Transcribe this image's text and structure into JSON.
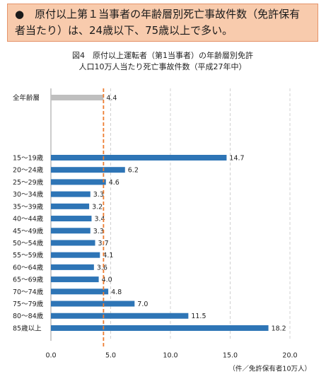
{
  "header": {
    "text": "●　原付以上第１当事者の年齢層別死亡事故件数（免許保有者当たり）は、24歳以下、75歳以上で多い。"
  },
  "chart_data": {
    "type": "hbar",
    "title": "図4　原付以上運転者（第1当事者）の年齢層別免許",
    "subtitle": "人口10万人当たり死亡事故件数（平成27年中）",
    "x_unit_label": "（件／免許保有者10万人）",
    "categories": [
      "全年齢層",
      "15～19歳",
      "20～24歳",
      "25～29歳",
      "30～34歳",
      "35～39歳",
      "40～44歳",
      "45～49歳",
      "50～54歳",
      "55～59歳",
      "60～64歳",
      "65～69歳",
      "70～74歳",
      "75～79歳",
      "80～84歳",
      "85歳以上"
    ],
    "values": [
      4.4,
      14.7,
      6.2,
      4.6,
      3.3,
      3.2,
      3.4,
      3.3,
      3.7,
      4.1,
      3.6,
      4.0,
      4.8,
      7.0,
      11.5,
      18.2
    ],
    "value_labels": [
      "4.4",
      "14.7",
      "6.2",
      "4.6",
      "3.3",
      "3.2",
      "3.4",
      "3.3",
      "3.7",
      "4.1",
      "3.6",
      "4.0",
      "4.8",
      "7.0",
      "11.5",
      "18.2"
    ],
    "colors": [
      "#bfbfbf",
      "#2e75b6",
      "#2e75b6",
      "#2e75b6",
      "#2e75b6",
      "#2e75b6",
      "#2e75b6",
      "#2e75b6",
      "#2e75b6",
      "#2e75b6",
      "#2e75b6",
      "#2e75b6",
      "#2e75b6",
      "#2e75b6",
      "#2e75b6",
      "#2e75b6"
    ],
    "reference_color": "#ed7d31",
    "xlim": [
      0,
      20
    ],
    "xticks": [
      {
        "value": 0,
        "label": "0.0"
      },
      {
        "value": 5,
        "label": "5.0"
      },
      {
        "value": 10,
        "label": "10.0"
      },
      {
        "value": 15,
        "label": "15.0"
      },
      {
        "value": 20,
        "label": "20.0"
      }
    ],
    "grid": true
  }
}
